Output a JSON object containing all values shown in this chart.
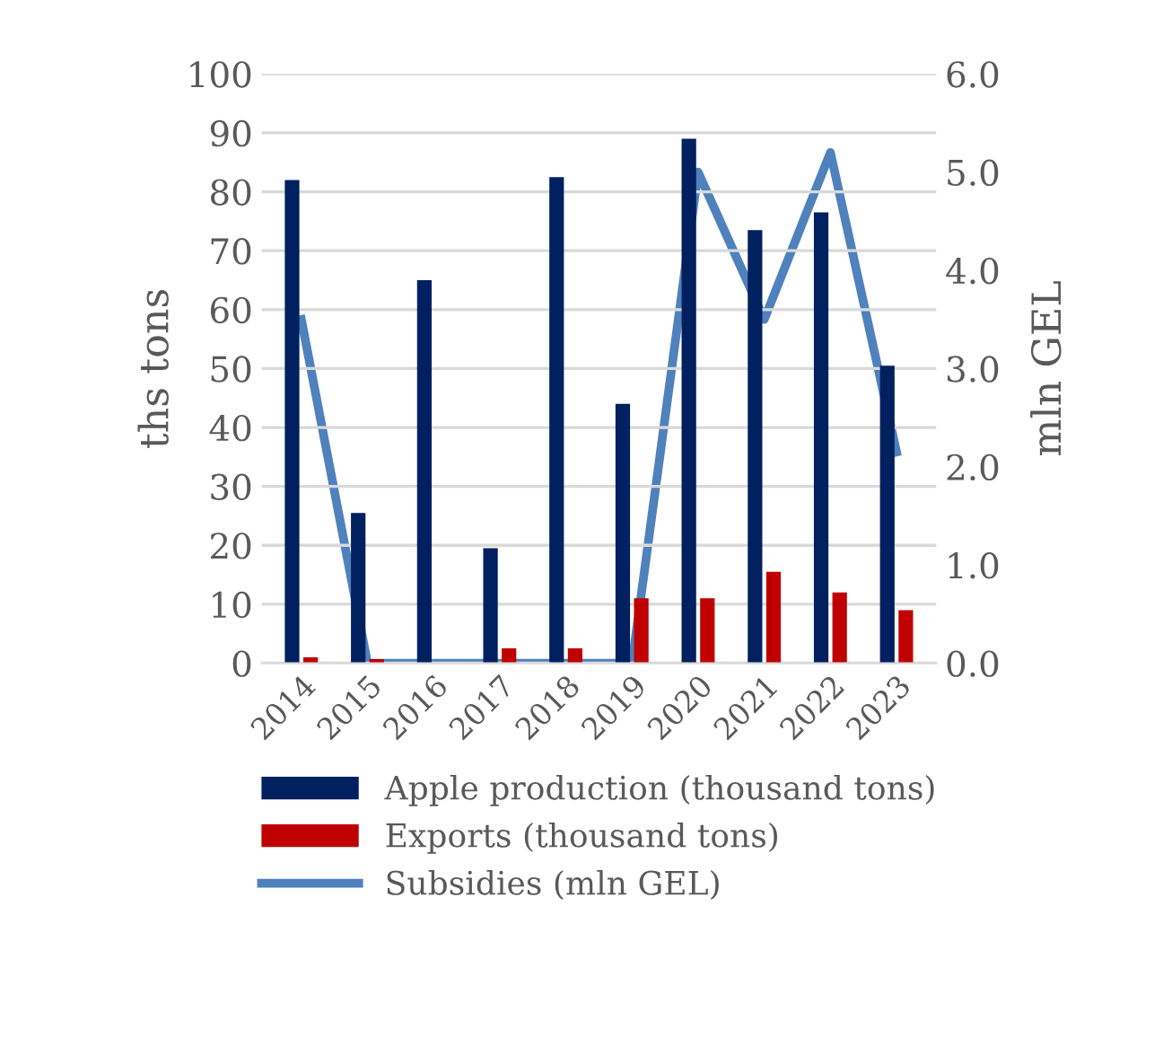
{
  "chart_data": {
    "type": "bar",
    "categories": [
      "2014",
      "2015",
      "2016",
      "2017",
      "2018",
      "2019",
      "2020",
      "2021",
      "2022",
      "2023"
    ],
    "series": [
      {
        "name": "Apple production (thousand tons)",
        "color": "#002060",
        "values": [
          82,
          25.5,
          65,
          19.5,
          82.5,
          44,
          89,
          73.5,
          76.5,
          50.5
        ]
      },
      {
        "name": "Exports (thousand tons)",
        "color": "#c00000",
        "values": [
          1,
          0.7,
          0,
          2.5,
          2.5,
          11,
          11,
          15.5,
          12,
          9
        ]
      },
      {
        "name": "Subsidies (mln GEL)",
        "color": "#4f81bd",
        "type": "line",
        "axis": "y2",
        "values": [
          3.5,
          0,
          0,
          0,
          0,
          0,
          5.0,
          3.5,
          5.2,
          2.15
        ]
      }
    ],
    "ylabel": "ths tons",
    "y2label": "mln GEL",
    "ylim": [
      0,
      100
    ],
    "yticks": [
      0,
      10,
      20,
      30,
      40,
      50,
      60,
      70,
      80,
      90,
      100
    ],
    "y2lim": [
      0,
      6
    ],
    "y2ticks": [
      {
        "value": 0,
        "label": "0.0"
      },
      {
        "value": 1,
        "label": "1.0"
      },
      {
        "value": 2,
        "label": "2.0"
      },
      {
        "value": 3,
        "label": "3.0"
      },
      {
        "value": 4,
        "label": "4.0"
      },
      {
        "value": 5,
        "label": "5.0"
      },
      {
        "value": 6,
        "label": "6.0"
      }
    ],
    "grid": "y",
    "legend": "bottom",
    "marker": "none",
    "line_style": "solid"
  }
}
